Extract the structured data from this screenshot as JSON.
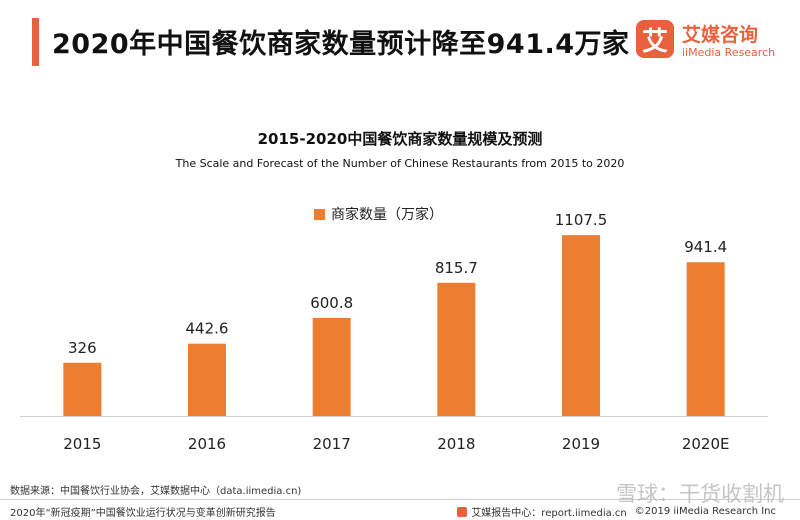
{
  "header": {
    "title": "2020年中国餐饮商家数量预计降至941.4万家",
    "accent_color": "#e8603c"
  },
  "logo": {
    "mark": "艾",
    "name_cn": "艾媒咨询",
    "name_en": "iiMedia Research"
  },
  "chart_data": {
    "type": "bar",
    "title": "2015-2020中国餐饮商家数量规模及预测",
    "subtitle": "The Scale and Forecast of the Number of Chinese Restaurants from 2015 to 2020",
    "categories": [
      "2015",
      "2016",
      "2017",
      "2018",
      "2019",
      "2020E"
    ],
    "series": [
      {
        "name": "商家数量（万家）",
        "values": [
          326,
          442.6,
          600.8,
          815.7,
          1107.5,
          941.4
        ],
        "labels": [
          "326",
          "442.6",
          "600.8",
          "815.7",
          "1107.5",
          "941.4"
        ],
        "color": "#ed7d31"
      }
    ],
    "xlabel": "",
    "ylabel": "",
    "ylim": [
      0,
      1200
    ],
    "grid": false,
    "legend": "top-center"
  },
  "footer": {
    "source": "数据来源：中国餐饮行业协会，艾媒数据中心（data.iimedia.cn)",
    "report": "2020年“新冠疫期”中国餐饮业运行状况与变革创新研究报告",
    "report_site": "艾媒报告中心：report.iimedia.cn",
    "copyright": "©2019  iiMedia Research  Inc",
    "watermark": "雪球：干货收割机"
  }
}
